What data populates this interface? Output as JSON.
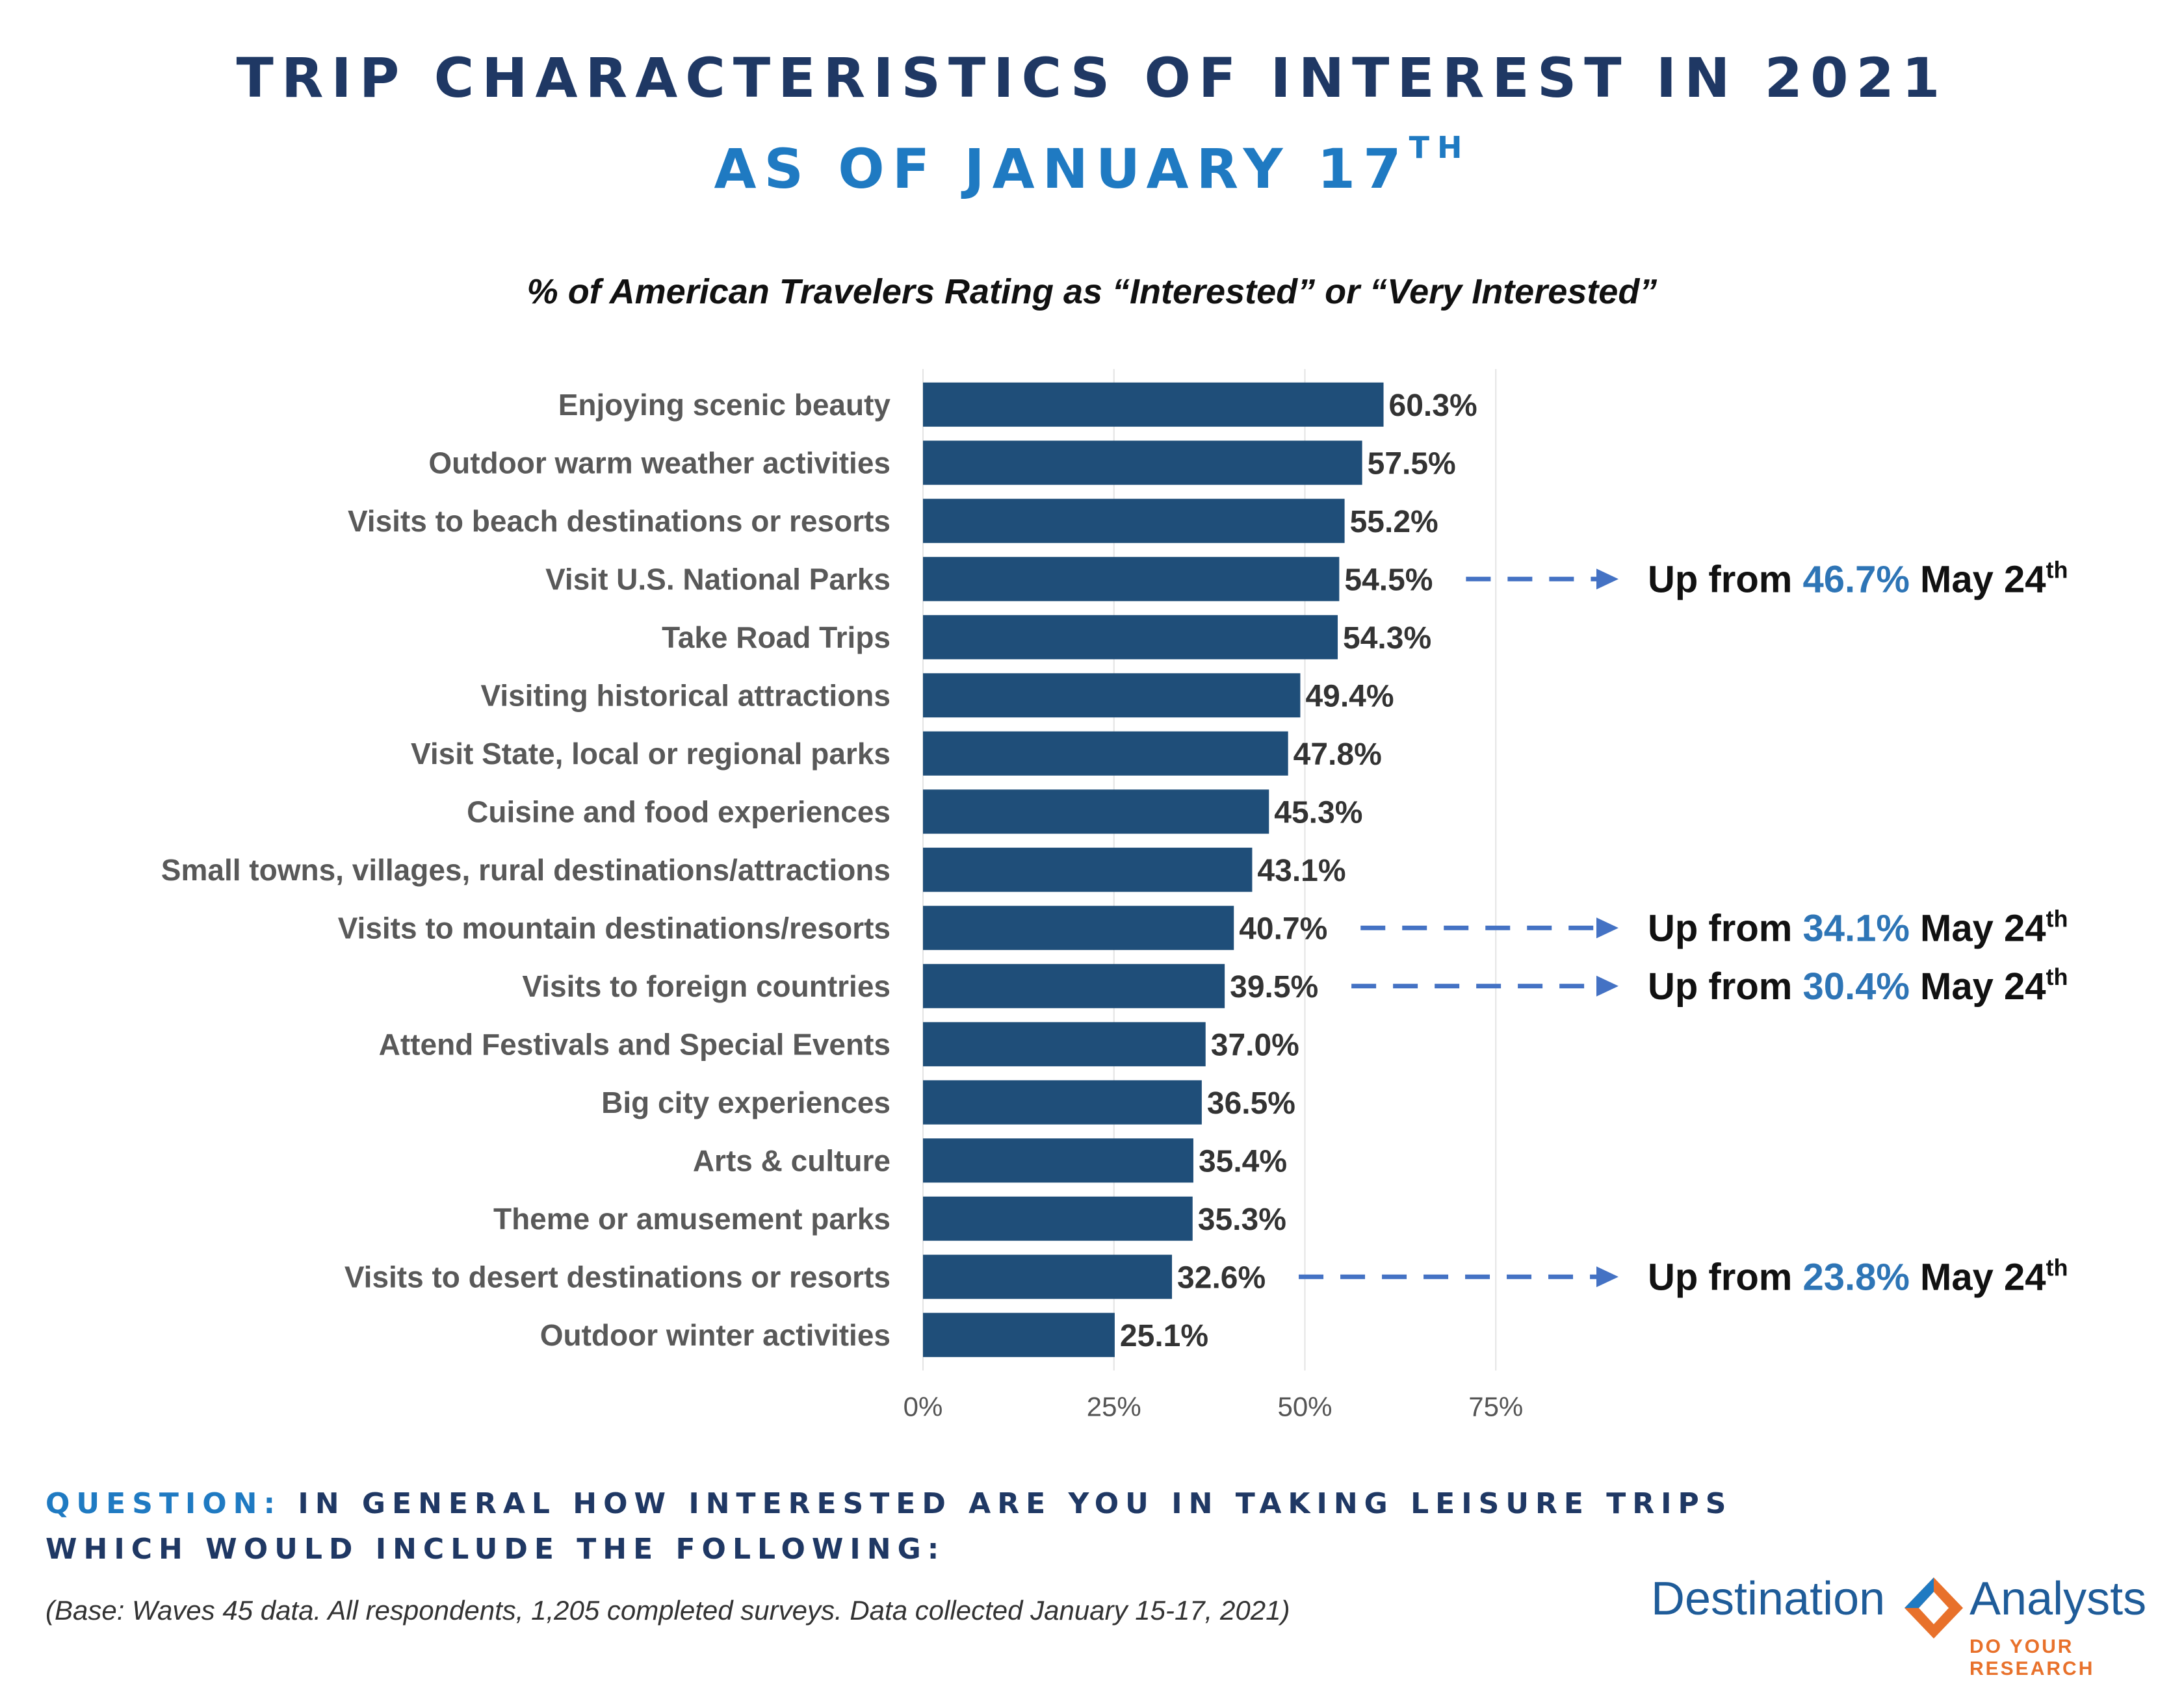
{
  "header": {
    "title": "TRIP CHARACTERISTICS OF INTEREST IN 2021",
    "subtitle_main": "AS OF JANUARY 17",
    "subtitle_suffix": "TH"
  },
  "chart_caption": "% of American Travelers Rating as “Interested” or “Very Interested”",
  "colors": {
    "bar": "#1f4e79",
    "arrow": "#4472c4",
    "highlight": "#2e75b6",
    "title": "#1f3864",
    "subtitle": "#1f7ac2"
  },
  "chart_data": {
    "type": "bar",
    "orientation": "horizontal",
    "categories": [
      "Enjoying scenic beauty",
      "Outdoor warm weather activities",
      "Visits to beach destinations or resorts",
      "Visit U.S. National Parks",
      "Take Road Trips",
      "Visiting historical attractions",
      "Visit State, local or regional parks",
      "Cuisine and food experiences",
      "Small towns,  villages, rural destinations/attractions",
      "Visits to mountain destinations/resorts",
      "Visits to foreign countries",
      "Attend Festivals and Special Events",
      "Big city experiences",
      "Arts & culture",
      "Theme or amusement parks",
      "Visits to desert destinations or resorts",
      "Outdoor winter activities"
    ],
    "values": [
      60.3,
      57.5,
      55.2,
      54.5,
      54.3,
      49.4,
      47.8,
      45.3,
      43.1,
      40.7,
      39.5,
      37.0,
      36.5,
      35.4,
      35.3,
      32.6,
      25.1
    ],
    "value_labels": [
      "60.3%",
      "57.5%",
      "55.2%",
      "54.5%",
      "54.3%",
      "49.4%",
      "47.8%",
      "45.3%",
      "43.1%",
      "40.7%",
      "39.5%",
      "37.0%",
      "36.5%",
      "35.4%",
      "35.3%",
      "32.6%",
      "25.1%"
    ],
    "xlim": [
      0,
      75
    ],
    "xticks": [
      0,
      25,
      50,
      75
    ],
    "xtick_labels": [
      "0%",
      "25%",
      "50%",
      "75%"
    ],
    "grid": true,
    "annotations": [
      {
        "category": "Visit U.S. National Parks",
        "prefix": "Up from ",
        "value": "46.7%",
        "suffix": " May 24",
        "sup": "th"
      },
      {
        "category": "Visits to mountain destinations/resorts",
        "prefix": "Up from ",
        "value": "34.1%",
        "suffix": " May 24",
        "sup": "th"
      },
      {
        "category": "Visits to foreign countries",
        "prefix": "Up from ",
        "value": "30.4%",
        "suffix": " May 24",
        "sup": "th"
      },
      {
        "category": "Visits to desert destinations or resorts",
        "prefix": "Up from ",
        "value": "23.8%",
        "suffix": " May 24",
        "sup": "th"
      }
    ]
  },
  "question": {
    "label": "QUESTION:",
    "text": "IN GENERAL HOW INTERESTED ARE YOU IN TAKING LEISURE TRIPS WHICH WOULD INCLUDE THE FOLLOWING:"
  },
  "base_note": "(Base: Waves 45 data. All respondents, 1,205 completed surveys. Data collected January 15-17, 2021)",
  "logo": {
    "left": "Destination",
    "right": "Analysts",
    "tagline": "DO YOUR RESEARCH"
  }
}
